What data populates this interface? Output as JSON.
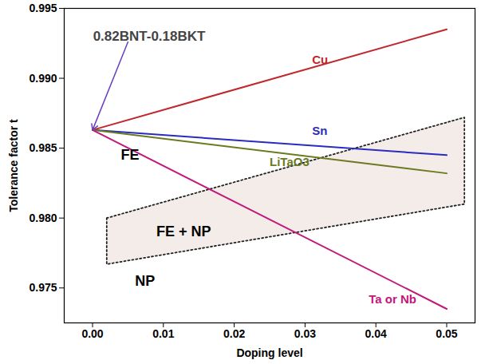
{
  "chart_data": {
    "type": "line",
    "x_label": "Doping level",
    "y_label": "Tolerance factor t",
    "xlim": [
      -0.004,
      0.054
    ],
    "ylim": [
      0.9725,
      0.995
    ],
    "xticks": [
      {
        "value": 0,
        "label": "0.00"
      },
      {
        "value": 0.01,
        "label": "0.01"
      },
      {
        "value": 0.02,
        "label": "0.02"
      },
      {
        "value": 0.03,
        "label": "0.03"
      },
      {
        "value": 0.04,
        "label": "0.04"
      },
      {
        "value": 0.05,
        "label": "0.05"
      }
    ],
    "yticks": [
      {
        "value": 0.975,
        "label": "0.975"
      },
      {
        "value": 0.98,
        "label": "0.980"
      },
      {
        "value": 0.985,
        "label": "0.985"
      },
      {
        "value": 0.99,
        "label": "0.990"
      },
      {
        "value": 0.995,
        "label": "0.995"
      }
    ],
    "grid": false,
    "series": [
      {
        "name": "Cu",
        "color": "#c0282d",
        "x": [
          0,
          0.05
        ],
        "values": [
          0.9863,
          0.9935
        ],
        "label_position": [
          0.031,
          0.9913
        ]
      },
      {
        "name": "Sn",
        "color": "#2b2bbd",
        "x": [
          0,
          0.05
        ],
        "values": [
          0.9863,
          0.9845
        ],
        "label_position": [
          0.031,
          0.9862
        ]
      },
      {
        "name": "LiTaO3",
        "color": "#6b7a1f",
        "x": [
          0,
          0.05
        ],
        "values": [
          0.9863,
          0.9832
        ],
        "label_position": [
          0.025,
          0.984
        ]
      },
      {
        "name": "Ta or Nb",
        "color": "#c2187a",
        "x": [
          0,
          0.05
        ],
        "values": [
          0.9863,
          0.9735
        ],
        "label_position": [
          0.039,
          0.9742
        ]
      }
    ],
    "shaded_region": {
      "x": [
        0.002,
        0.0525,
        0.0525,
        0.002
      ],
      "y": [
        0.98,
        0.9872,
        0.981,
        0.9767
      ]
    },
    "annotations": [
      {
        "text": "0.82BNT-0.18BKT",
        "x": 0.008,
        "y": 0.993,
        "color": "#444444",
        "arrow_to": [
          0,
          0.9863
        ]
      },
      {
        "text": "FE",
        "x": 0.004,
        "y": 0.9845
      },
      {
        "text": "FE + NP",
        "x": 0.009,
        "y": 0.979
      },
      {
        "text": "NP",
        "x": 0.006,
        "y": 0.9755
      }
    ]
  }
}
